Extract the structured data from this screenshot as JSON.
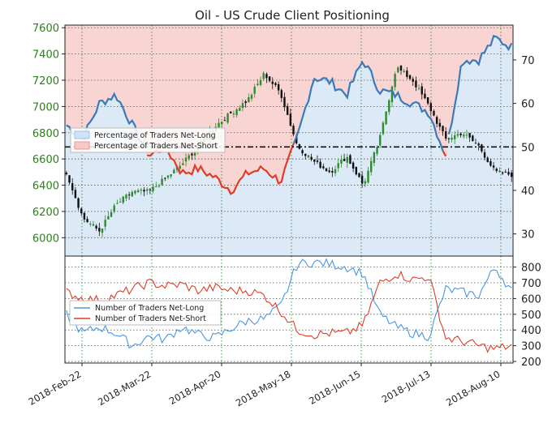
{
  "chart_data": [
    {
      "type": "candlestick+line",
      "title": "Oil - US Crude Client Positioning",
      "x_dates": [
        "2018-Feb-22",
        "2018-Mar-22",
        "2018-Apr-20",
        "2018-May-18",
        "2018-Jun-15",
        "2018-Jul-13",
        "2018-Aug-10"
      ],
      "left_axis": {
        "ticks": [
          6000,
          6200,
          6400,
          6600,
          6800,
          7000,
          7200,
          7400,
          7600
        ],
        "ylim": [
          5860,
          7620
        ]
      },
      "right_axis": {
        "ticks": [
          30,
          40,
          50,
          60,
          70
        ],
        "ylim": [
          24.9,
          78
        ]
      },
      "neutral_line": 50,
      "legend": [
        "Percentage of Traders Net-Long",
        "Percentage of Traders Net-Short"
      ],
      "price_keypoints": [
        6500,
        6150,
        6050,
        6250,
        6350,
        6350,
        6450,
        6560,
        6700,
        6850,
        6950,
        7050,
        7250,
        7100,
        6700,
        6580,
        6500,
        6620,
        6400,
        6750,
        7300,
        7200,
        7000,
        6750,
        6800,
        6700,
        6500,
        6480
      ],
      "net_long_pct_keypoints": [
        55,
        52,
        60,
        62,
        55,
        48,
        50,
        44,
        45,
        43,
        40,
        44,
        45,
        42,
        52,
        66,
        65,
        62,
        70,
        63,
        62,
        60,
        58,
        48,
        70,
        70,
        75,
        73
      ],
      "colors": {
        "long": "#3a7ab8",
        "short": "#e03c28",
        "candle_up": "#2e8b2e",
        "candle_down": "#111111",
        "long_band": "#dce9f6",
        "short_band": "#f8d5d3",
        "price_axis": "#2e7d1e"
      }
    },
    {
      "type": "line",
      "title": "",
      "right_axis": {
        "ticks": [
          200,
          300,
          400,
          500,
          600,
          700,
          800
        ],
        "ylim": [
          190,
          870
        ]
      },
      "legend": [
        "Number of Traders Net-Long",
        "Number of Traders Net-Short"
      ],
      "series": [
        {
          "name": "Number of Traders Net-Long",
          "color": "#4a97e0",
          "keypoints": [
            500,
            380,
            420,
            380,
            300,
            360,
            340,
            420,
            370,
            350,
            410,
            460,
            470,
            550,
            820,
            830,
            820,
            800,
            760,
            500,
            420,
            380,
            360,
            660,
            640,
            620,
            800,
            650
          ]
        },
        {
          "name": "Number of Traders Net-Short",
          "color": "#e03c28",
          "keypoints": [
            640,
            600,
            590,
            620,
            660,
            700,
            680,
            690,
            650,
            670,
            650,
            650,
            620,
            520,
            400,
            370,
            380,
            380,
            430,
            700,
            760,
            720,
            740,
            350,
            330,
            300,
            280,
            300
          ]
        }
      ]
    }
  ]
}
